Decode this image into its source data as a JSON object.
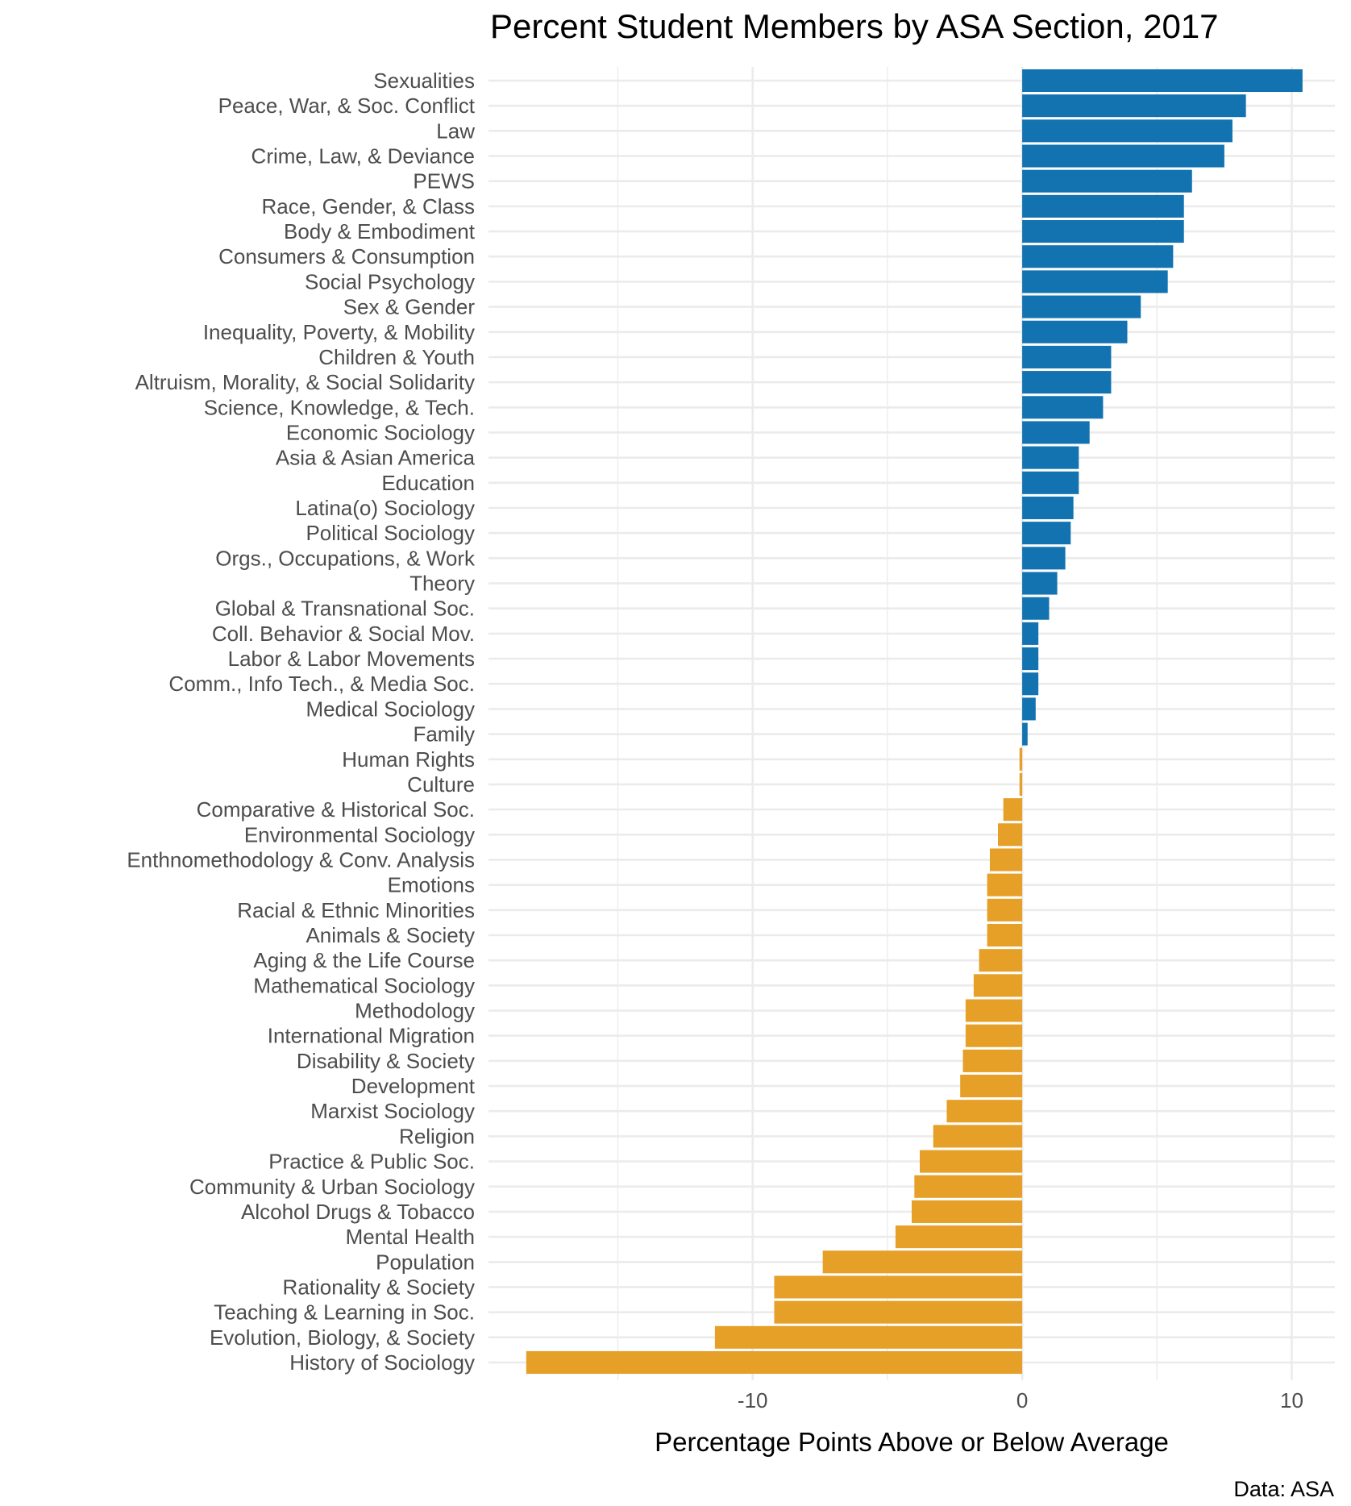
{
  "chart_data": {
    "type": "bar",
    "orientation": "horizontal",
    "title": "Percent Student Members by ASA Section, 2017",
    "xlabel": "Percentage Points Above or Below Average",
    "ylabel": "",
    "caption": "Data: ASA",
    "xlim": [
      -19.8,
      11.6
    ],
    "xticks": [
      -10,
      0,
      10
    ],
    "tick_labels": [
      "-10",
      "0",
      "10"
    ],
    "grid": true,
    "colors": {
      "positive": "#1273b0",
      "negative": "#e69f27",
      "grid": "#ebebeb"
    },
    "categories": [
      "Sexualities",
      "Peace, War, & Soc. Conflict",
      "Law",
      "Crime, Law, & Deviance",
      "PEWS",
      "Race, Gender, & Class",
      "Body & Embodiment",
      "Consumers & Consumption",
      "Social Psychology",
      "Sex & Gender",
      "Inequality, Poverty, & Mobility",
      "Children & Youth",
      "Altruism, Morality, & Social Solidarity",
      "Science, Knowledge, & Tech.",
      "Economic Sociology",
      "Asia & Asian America",
      "Education",
      "Latina(o) Sociology",
      "Political Sociology",
      "Orgs., Occupations, & Work",
      "Theory",
      "Global & Transnational Soc.",
      "Coll. Behavior & Social Mov.",
      "Labor & Labor Movements",
      "Comm., Info Tech., & Media Soc.",
      "Medical Sociology",
      "Family",
      "Human Rights",
      "Culture",
      "Comparative & Historical Soc.",
      "Environmental Sociology",
      "Enthnomethodology & Conv. Analysis",
      "Emotions",
      "Racial & Ethnic Minorities",
      "Animals & Society",
      "Aging & the Life Course",
      "Mathematical Sociology",
      "Methodology",
      "International Migration",
      "Disability & Society",
      "Development",
      "Marxist Sociology",
      "Religion",
      "Practice & Public Soc.",
      "Community & Urban Sociology",
      "Alcohol Drugs & Tobacco",
      "Mental Health",
      "Population",
      "Rationality & Society",
      "Teaching & Learning in Soc.",
      "Evolution, Biology, & Society",
      "History of Sociology"
    ],
    "values": [
      10.4,
      8.3,
      7.8,
      7.5,
      6.3,
      6.0,
      6.0,
      5.6,
      5.4,
      4.4,
      3.9,
      3.3,
      3.3,
      3.0,
      2.5,
      2.1,
      2.1,
      1.9,
      1.8,
      1.6,
      1.3,
      1.0,
      0.6,
      0.6,
      0.6,
      0.5,
      0.2,
      -0.1,
      -0.1,
      -0.7,
      -0.9,
      -1.2,
      -1.3,
      -1.3,
      -1.3,
      -1.6,
      -1.8,
      -2.1,
      -2.1,
      -2.2,
      -2.3,
      -2.8,
      -3.3,
      -3.8,
      -4.0,
      -4.1,
      -4.7,
      -7.4,
      -9.2,
      -9.2,
      -11.4,
      -18.4
    ]
  }
}
